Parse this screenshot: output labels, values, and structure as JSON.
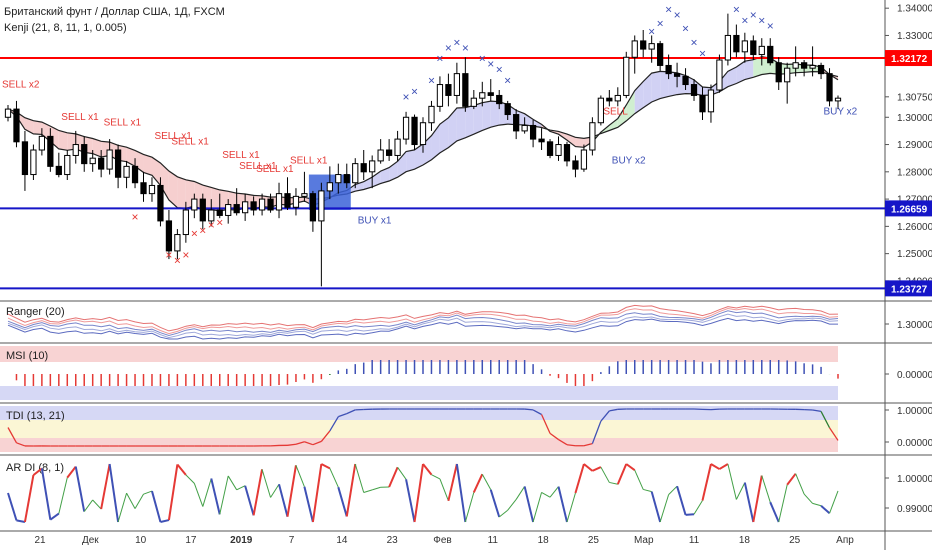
{
  "title": "Британский фунт / Доллар США, 1Д, FXCM",
  "indicator_main": "Kenji (21, 8, 11, 1, 0.005)",
  "colors": {
    "bull": "#ffffff",
    "bear": "#000000",
    "red_line": "#ff0000",
    "blue_line": "#1515c8",
    "sell": "#e53935",
    "buy": "#3f51b5",
    "cloud_bear": "#f4c7c7",
    "cloud_bull": "#c9c9f2",
    "cloud_green": "#c8ecc8"
  },
  "chart_data": [
    {
      "panel": "price",
      "type": "candlestick",
      "yticks": [
        "1.34000",
        "1.33000",
        "1.30750",
        "1.30000",
        "1.29000",
        "1.28000",
        "1.27000",
        "1.26000",
        "1.25000",
        "1.24000"
      ],
      "hlines": [
        {
          "value": 1.32172,
          "label": "1.32172",
          "color": "#ff0000"
        },
        {
          "value": 1.26659,
          "label": "1.26659",
          "color": "#1515c8"
        },
        {
          "value": 1.23727,
          "label": "1.23727",
          "color": "#1515c8"
        }
      ],
      "annotations": [
        "SELL x2",
        "SELL x1",
        "SELL x1",
        "SELL x1",
        "SELL x1",
        "SELL x1",
        "SELL x1",
        "SELL x1",
        "SELL x1",
        "BUY x1",
        "SELL",
        "BUY x2",
        "BUY x2"
      ],
      "ohlc": [
        [
          1.3,
          1.3045,
          1.2985,
          1.303
        ],
        [
          1.303,
          1.306,
          1.289,
          1.291
        ],
        [
          1.291,
          1.295,
          1.273,
          1.279
        ],
        [
          1.279,
          1.29,
          1.277,
          1.288
        ],
        [
          1.288,
          1.296,
          1.286,
          1.293
        ],
        [
          1.293,
          1.296,
          1.28,
          1.282
        ],
        [
          1.282,
          1.287,
          1.278,
          1.279
        ],
        [
          1.279,
          1.288,
          1.277,
          1.286
        ],
        [
          1.286,
          1.295,
          1.283,
          1.29
        ],
        [
          1.29,
          1.293,
          1.28,
          1.283
        ],
        [
          1.283,
          1.288,
          1.28,
          1.285
        ],
        [
          1.285,
          1.288,
          1.278,
          1.281
        ],
        [
          1.281,
          1.292,
          1.279,
          1.288
        ],
        [
          1.288,
          1.29,
          1.274,
          1.278
        ],
        [
          1.278,
          1.284,
          1.274,
          1.282
        ],
        [
          1.282,
          1.285,
          1.274,
          1.276
        ],
        [
          1.276,
          1.28,
          1.269,
          1.272
        ],
        [
          1.272,
          1.278,
          1.269,
          1.275
        ],
        [
          1.275,
          1.278,
          1.26,
          1.262
        ],
        [
          1.262,
          1.266,
          1.248,
          1.251
        ],
        [
          1.251,
          1.259,
          1.248,
          1.257
        ],
        [
          1.257,
          1.269,
          1.254,
          1.266
        ],
        [
          1.266,
          1.272,
          1.263,
          1.27
        ],
        [
          1.27,
          1.272,
          1.259,
          1.262
        ],
        [
          1.262,
          1.27,
          1.26,
          1.266
        ],
        [
          1.266,
          1.272,
          1.263,
          1.264
        ],
        [
          1.264,
          1.27,
          1.261,
          1.268
        ],
        [
          1.268,
          1.274,
          1.264,
          1.265
        ],
        [
          1.265,
          1.272,
          1.262,
          1.269
        ],
        [
          1.269,
          1.271,
          1.264,
          1.266
        ],
        [
          1.266,
          1.272,
          1.264,
          1.27
        ],
        [
          1.27,
          1.272,
          1.265,
          1.266
        ],
        [
          1.266,
          1.276,
          1.263,
          1.272
        ],
        [
          1.272,
          1.278,
          1.266,
          1.267
        ],
        [
          1.267,
          1.274,
          1.264,
          1.271
        ],
        [
          1.271,
          1.28,
          1.269,
          1.272
        ],
        [
          1.272,
          1.273,
          1.258,
          1.262
        ],
        [
          1.262,
          1.276,
          1.238,
          1.273
        ],
        [
          1.273,
          1.282,
          1.27,
          1.276
        ],
        [
          1.276,
          1.283,
          1.272,
          1.279
        ],
        [
          1.279,
          1.283,
          1.274,
          1.276
        ],
        [
          1.276,
          1.285,
          1.274,
          1.283
        ],
        [
          1.283,
          1.288,
          1.277,
          1.28
        ],
        [
          1.28,
          1.286,
          1.274,
          1.284
        ],
        [
          1.284,
          1.292,
          1.283,
          1.288
        ],
        [
          1.288,
          1.292,
          1.284,
          1.286
        ],
        [
          1.286,
          1.295,
          1.284,
          1.292
        ],
        [
          1.292,
          1.302,
          1.29,
          1.3
        ],
        [
          1.3,
          1.301,
          1.288,
          1.29
        ],
        [
          1.29,
          1.3,
          1.287,
          1.298
        ],
        [
          1.298,
          1.306,
          1.295,
          1.304
        ],
        [
          1.304,
          1.315,
          1.302,
          1.312
        ],
        [
          1.312,
          1.316,
          1.304,
          1.308
        ],
        [
          1.308,
          1.32,
          1.305,
          1.316
        ],
        [
          1.316,
          1.322,
          1.302,
          1.304
        ],
        [
          1.304,
          1.31,
          1.303,
          1.307
        ],
        [
          1.307,
          1.313,
          1.304,
          1.309
        ],
        [
          1.309,
          1.314,
          1.306,
          1.308
        ],
        [
          1.308,
          1.31,
          1.303,
          1.305
        ],
        [
          1.305,
          1.306,
          1.299,
          1.301
        ],
        [
          1.301,
          1.303,
          1.292,
          1.295
        ],
        [
          1.295,
          1.3,
          1.294,
          1.297
        ],
        [
          1.297,
          1.299,
          1.289,
          1.292
        ],
        [
          1.292,
          1.296,
          1.288,
          1.291
        ],
        [
          1.291,
          1.292,
          1.285,
          1.286
        ],
        [
          1.286,
          1.293,
          1.284,
          1.29
        ],
        [
          1.29,
          1.291,
          1.282,
          1.284
        ],
        [
          1.284,
          1.286,
          1.278,
          1.281
        ],
        [
          1.281,
          1.29,
          1.28,
          1.288
        ],
        [
          1.288,
          1.3,
          1.286,
          1.298
        ],
        [
          1.298,
          1.308,
          1.297,
          1.307
        ],
        [
          1.307,
          1.31,
          1.304,
          1.306
        ],
        [
          1.306,
          1.311,
          1.304,
          1.308
        ],
        [
          1.308,
          1.324,
          1.307,
          1.322
        ],
        [
          1.322,
          1.33,
          1.316,
          1.328
        ],
        [
          1.328,
          1.332,
          1.322,
          1.325
        ],
        [
          1.325,
          1.33,
          1.32,
          1.327
        ],
        [
          1.327,
          1.328,
          1.317,
          1.319
        ],
        [
          1.319,
          1.323,
          1.314,
          1.316
        ],
        [
          1.316,
          1.32,
          1.311,
          1.315
        ],
        [
          1.315,
          1.318,
          1.31,
          1.312
        ],
        [
          1.312,
          1.314,
          1.306,
          1.308
        ],
        [
          1.308,
          1.311,
          1.299,
          1.302
        ],
        [
          1.302,
          1.312,
          1.298,
          1.31
        ],
        [
          1.31,
          1.323,
          1.309,
          1.321
        ],
        [
          1.321,
          1.338,
          1.319,
          1.33
        ],
        [
          1.33,
          1.334,
          1.322,
          1.324
        ],
        [
          1.324,
          1.331,
          1.32,
          1.328
        ],
        [
          1.328,
          1.33,
          1.321,
          1.323
        ],
        [
          1.323,
          1.329,
          1.319,
          1.326
        ],
        [
          1.326,
          1.329,
          1.319,
          1.32
        ],
        [
          1.32,
          1.322,
          1.31,
          1.313
        ],
        [
          1.313,
          1.32,
          1.305,
          1.318
        ],
        [
          1.318,
          1.326,
          1.315,
          1.32
        ],
        [
          1.32,
          1.321,
          1.315,
          1.318
        ],
        [
          1.318,
          1.326,
          1.315,
          1.319
        ],
        [
          1.319,
          1.32,
          1.314,
          1.316
        ],
        [
          1.316,
          1.318,
          1.304,
          1.306
        ],
        [
          1.306,
          1.308,
          1.303,
          1.307
        ]
      ],
      "xticks": [
        "21",
        "Дек",
        "10",
        "17",
        "2019",
        "7",
        "14",
        "23",
        "Фев",
        "11",
        "18",
        "25",
        "Мар",
        "11",
        "18",
        "25",
        "Апр"
      ]
    },
    {
      "panel": "Ranger (20)",
      "type": "line",
      "label": "Ranger (20)",
      "yticks": [
        "1.30000"
      ]
    },
    {
      "panel": "MSI (10)",
      "type": "bar",
      "label": "MSI (10)",
      "yticks": [
        "0.00000"
      ]
    },
    {
      "panel": "TDI (13, 21)",
      "type": "line",
      "label": "TDI (13, 21)",
      "yticks": [
        "1.00000",
        "0.00000"
      ]
    },
    {
      "panel": "AR DI (8, 1)",
      "type": "line",
      "label": "AR DI (8, 1)",
      "yticks": [
        "1.00000",
        "0.99000"
      ]
    }
  ]
}
